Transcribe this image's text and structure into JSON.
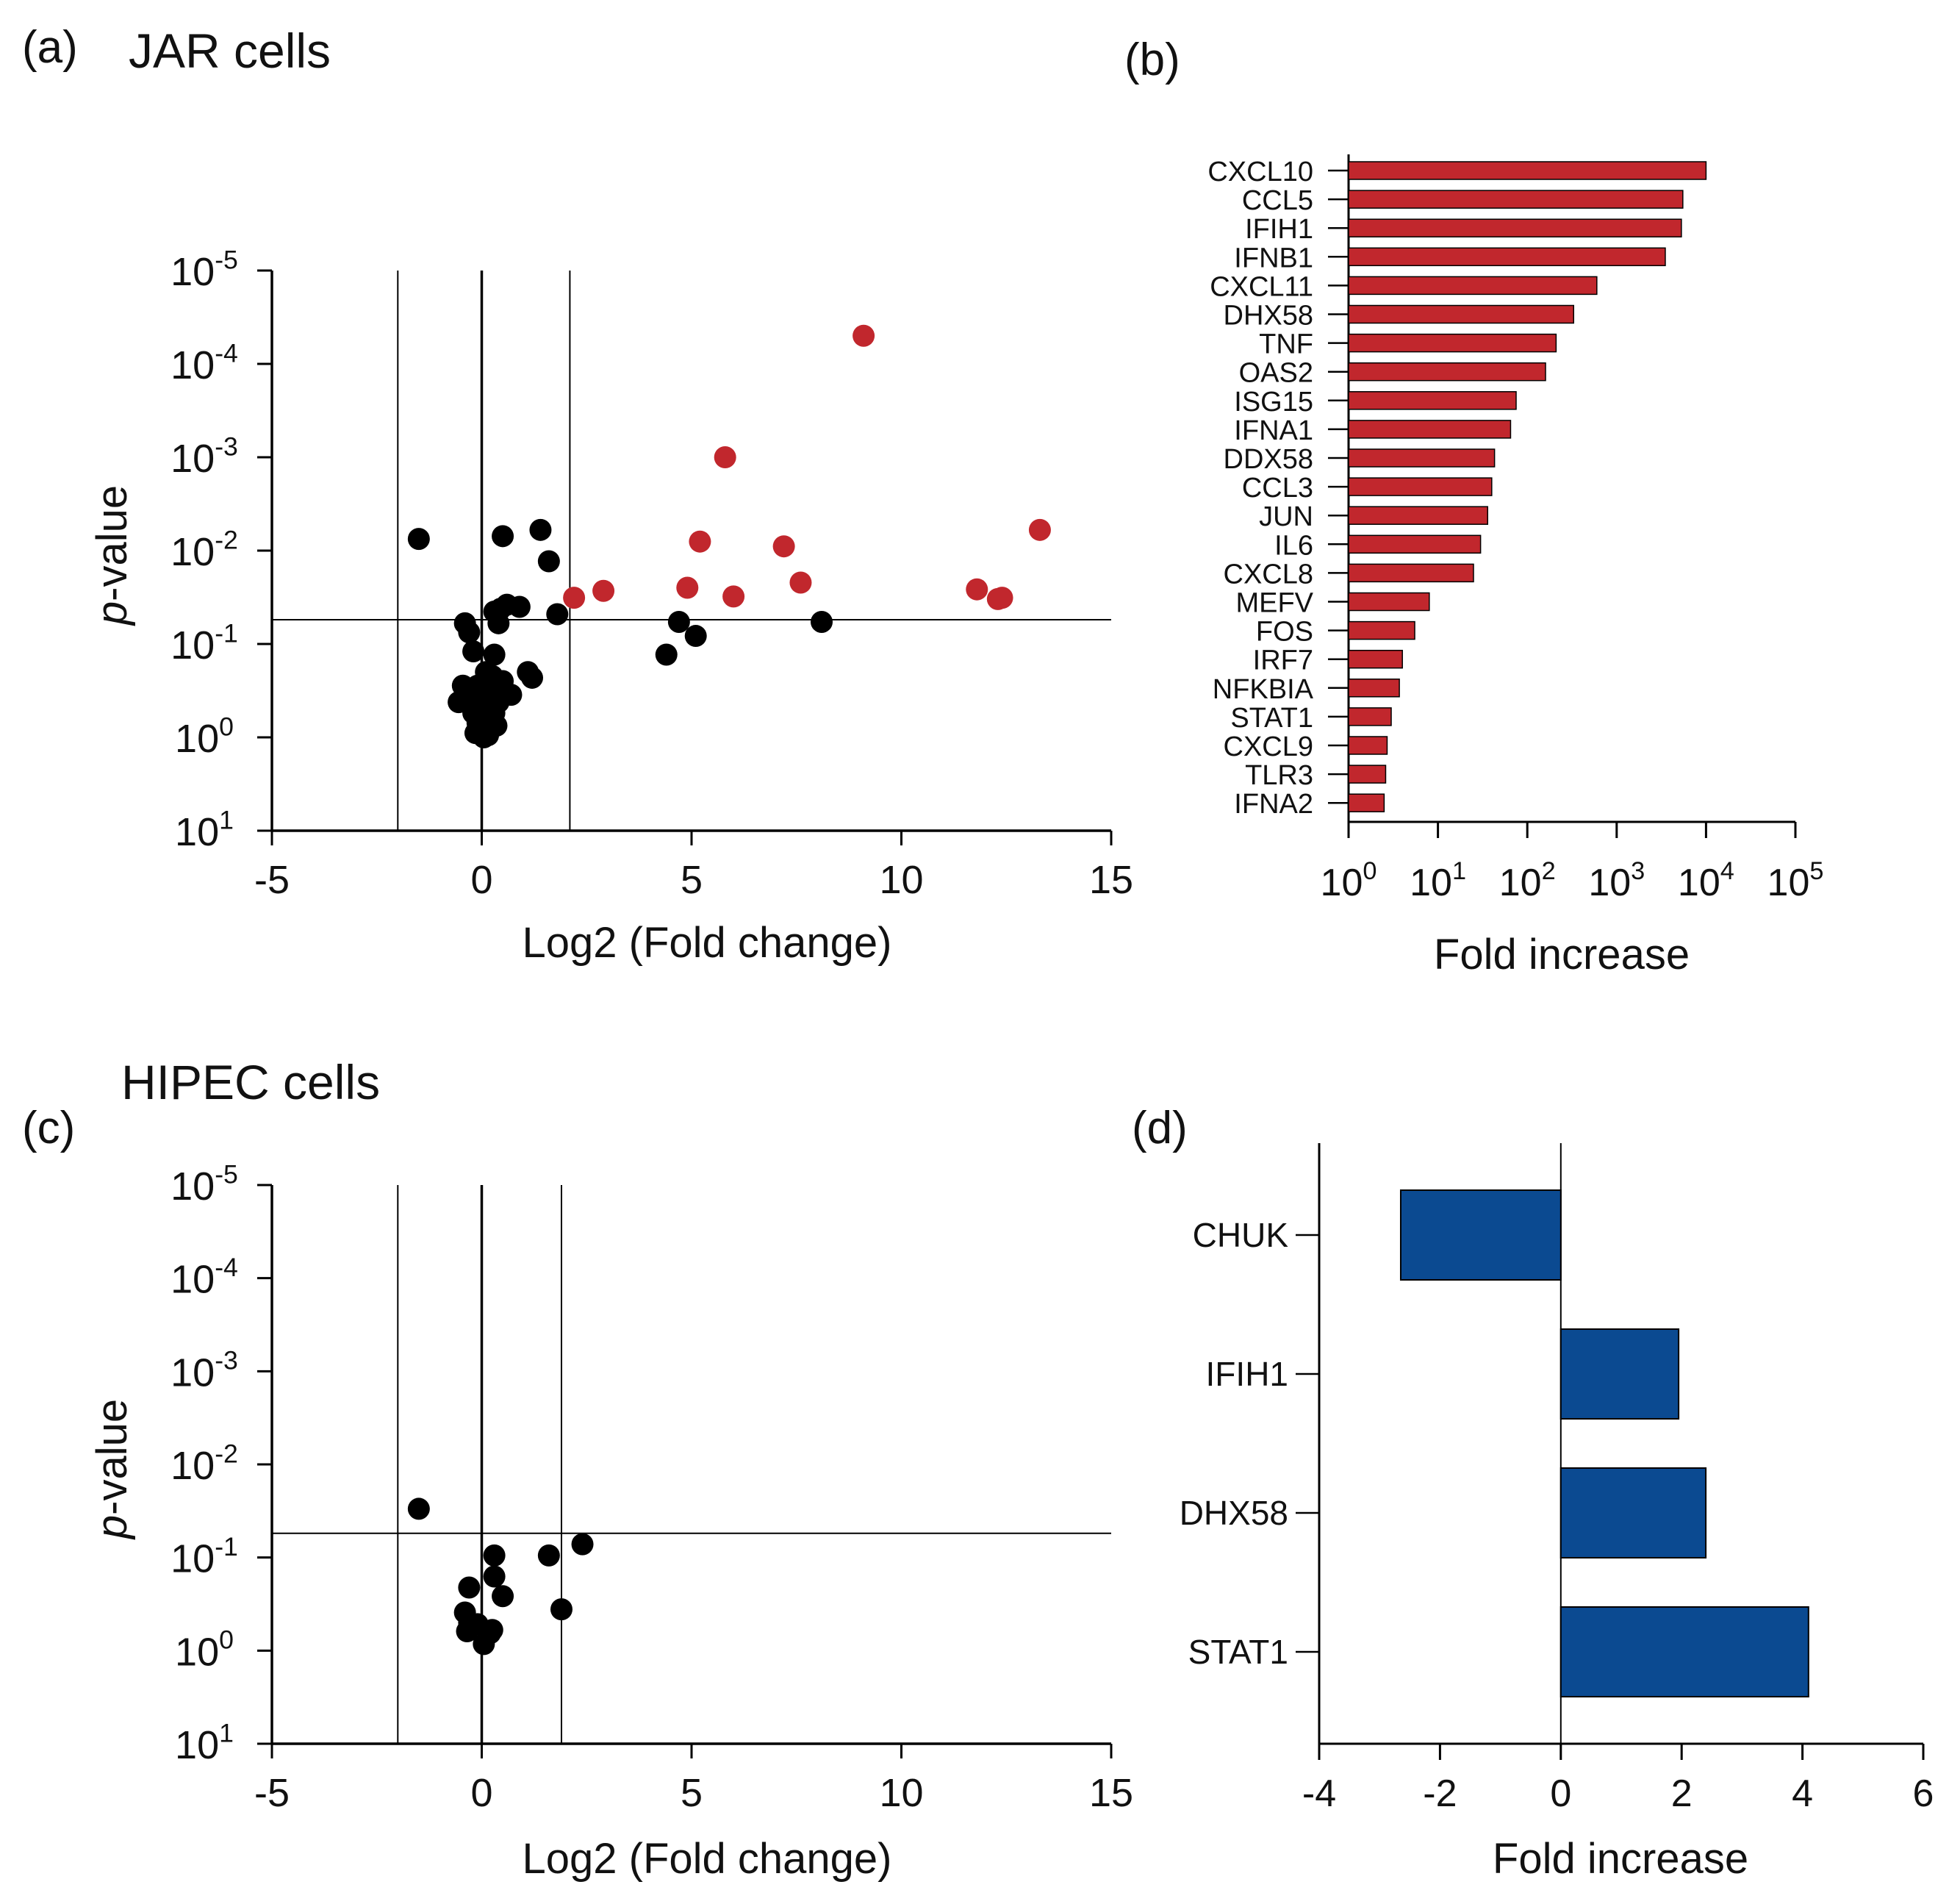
{
  "colors": {
    "black": "#000000",
    "red": "#c1272d",
    "blue": "#0b4a91"
  },
  "chart_data": [
    {
      "panel_label": "(a)",
      "title": "JAR cells",
      "type": "scatter",
      "xlabel": "Log2 (Fold change)",
      "ylabel_italic": "p",
      "ylabel_rest": "-value",
      "xlim": [
        -5,
        15
      ],
      "xticks": [
        "-5",
        "0",
        "5",
        "10",
        "15"
      ],
      "y_scale": "log, reversed (smaller p-values higher)",
      "yticks": [
        {
          "base": "10",
          "exp": "-5"
        },
        {
          "base": "10",
          "exp": "-4"
        },
        {
          "base": "10",
          "exp": "-3"
        },
        {
          "base": "10",
          "exp": "-2"
        },
        {
          "base": "10",
          "exp": "-1"
        },
        {
          "base": "10",
          "exp": "0"
        },
        {
          "base": "10",
          "exp": "1"
        }
      ],
      "reference_lines": {
        "x": [
          -2,
          0,
          2.1
        ],
        "p": 0.055
      },
      "series": [
        {
          "color": "red",
          "points": [
            [
              9.1,
              5e-05
            ],
            [
              5.8,
              0.001
            ],
            [
              5.2,
              0.008
            ],
            [
              7.2,
              0.009
            ],
            [
              13.3,
              0.006
            ],
            [
              2.2,
              0.032
            ],
            [
              2.9,
              0.027
            ],
            [
              4.9,
              0.025
            ],
            [
              6.0,
              0.031
            ],
            [
              7.6,
              0.022
            ],
            [
              11.8,
              0.026
            ],
            [
              12.3,
              0.033
            ],
            [
              12.4,
              0.032
            ]
          ]
        },
        {
          "color": "black",
          "points": [
            [
              -1.5,
              0.0075
            ],
            [
              0.5,
              0.007
            ],
            [
              1.4,
              0.006
            ],
            [
              1.6,
              0.013
            ],
            [
              1.8,
              0.048
            ],
            [
              0.3,
              0.045
            ],
            [
              0.45,
              0.042
            ],
            [
              0.6,
              0.038
            ],
            [
              0.9,
              0.04
            ],
            [
              0.4,
              0.06
            ],
            [
              -0.4,
              0.06
            ],
            [
              -0.3,
              0.075
            ],
            [
              4.7,
              0.058
            ],
            [
              5.1,
              0.082
            ],
            [
              4.4,
              0.13
            ],
            [
              8.1,
              0.058
            ],
            [
              -0.2,
              0.12
            ],
            [
              0.3,
              0.13
            ],
            [
              1.1,
              0.2
            ],
            [
              1.2,
              0.23
            ],
            [
              0.1,
              0.2
            ],
            [
              0.25,
              0.22
            ],
            [
              0.5,
              0.25
            ],
            [
              -0.1,
              0.28
            ],
            [
              0.2,
              0.35
            ],
            [
              -0.45,
              0.28
            ],
            [
              -0.3,
              0.35
            ],
            [
              0.4,
              0.42
            ],
            [
              0.7,
              0.35
            ],
            [
              -0.55,
              0.42
            ],
            [
              0.1,
              0.45
            ],
            [
              0.3,
              0.55
            ],
            [
              -0.2,
              0.55
            ],
            [
              -0.1,
              0.7
            ],
            [
              0.2,
              0.65
            ],
            [
              0.35,
              0.75
            ],
            [
              -0.15,
              0.9
            ],
            [
              0.05,
              1.0
            ],
            [
              -0.05,
              0.85
            ],
            [
              0.15,
              0.95
            ]
          ]
        }
      ]
    },
    {
      "panel_label": "(b)",
      "type": "bar",
      "orientation": "horizontal",
      "x_scale": "log",
      "xlabel": "Fold increase",
      "xlim": [
        1,
        100000
      ],
      "xticks": [
        {
          "base": "10",
          "exp": "0"
        },
        {
          "base": "10",
          "exp": "1"
        },
        {
          "base": "10",
          "exp": "2"
        },
        {
          "base": "10",
          "exp": "3"
        },
        {
          "base": "10",
          "exp": "4"
        },
        {
          "base": "10",
          "exp": "5"
        }
      ],
      "categories": [
        "CXCL10",
        "CCL5",
        "IFIH1",
        "IFNB1",
        "CXCL11",
        "DHX58",
        "TNF",
        "OAS2",
        "ISG15",
        "IFNA1",
        "DDX58",
        "CCL3",
        "JUN",
        "IL6",
        "CXCL8",
        "MEFV",
        "FOS",
        "IRF7",
        "NFKBIA",
        "STAT1",
        "CXCL9",
        "TLR3",
        "IFNA2"
      ],
      "values": [
        10000,
        5500,
        5300,
        3500,
        600,
        330,
        210,
        160,
        75,
        65,
        43,
        40,
        36,
        30,
        25,
        8,
        5.5,
        4,
        3.7,
        3,
        2.7,
        2.6,
        2.5
      ],
      "color": "red"
    },
    {
      "panel_label": "(c)",
      "title": "HIPEC cells",
      "type": "scatter",
      "xlabel": "Log2 (Fold change)",
      "ylabel_italic": "p",
      "ylabel_rest": "-value",
      "xlim": [
        -5,
        15
      ],
      "xticks": [
        "-5",
        "0",
        "5",
        "10",
        "15"
      ],
      "y_scale": "log, reversed (smaller p-values higher)",
      "yticks": [
        {
          "base": "10",
          "exp": "-5"
        },
        {
          "base": "10",
          "exp": "-4"
        },
        {
          "base": "10",
          "exp": "-3"
        },
        {
          "base": "10",
          "exp": "-2"
        },
        {
          "base": "10",
          "exp": "-1"
        },
        {
          "base": "10",
          "exp": "0"
        },
        {
          "base": "10",
          "exp": "1"
        }
      ],
      "reference_lines": {
        "x": [
          -2,
          0,
          1.9
        ],
        "p": 0.055
      },
      "series": [
        {
          "color": "black",
          "points": [
            [
              -1.5,
              0.03
            ],
            [
              2.4,
              0.072
            ],
            [
              1.6,
              0.095
            ],
            [
              0.3,
              0.095
            ],
            [
              0.3,
              0.16
            ],
            [
              -0.3,
              0.21
            ],
            [
              0.5,
              0.26
            ],
            [
              1.9,
              0.36
            ],
            [
              -0.4,
              0.39
            ],
            [
              -0.3,
              0.5
            ],
            [
              -0.1,
              0.52
            ],
            [
              0.2,
              0.65
            ],
            [
              0.25,
              0.6
            ],
            [
              -0.35,
              0.62
            ],
            [
              0.05,
              0.85
            ]
          ]
        }
      ]
    },
    {
      "panel_label": "(d)",
      "type": "bar",
      "orientation": "horizontal",
      "xlabel": "Fold increase",
      "xlim": [
        -4,
        6
      ],
      "xticks": [
        "-4",
        "-2",
        "0",
        "2",
        "4",
        "6"
      ],
      "categories": [
        "CHUK",
        "IFIH1",
        "DHX58",
        "STAT1"
      ],
      "values": [
        -2.65,
        1.95,
        2.4,
        4.1
      ],
      "color": "blue"
    }
  ]
}
